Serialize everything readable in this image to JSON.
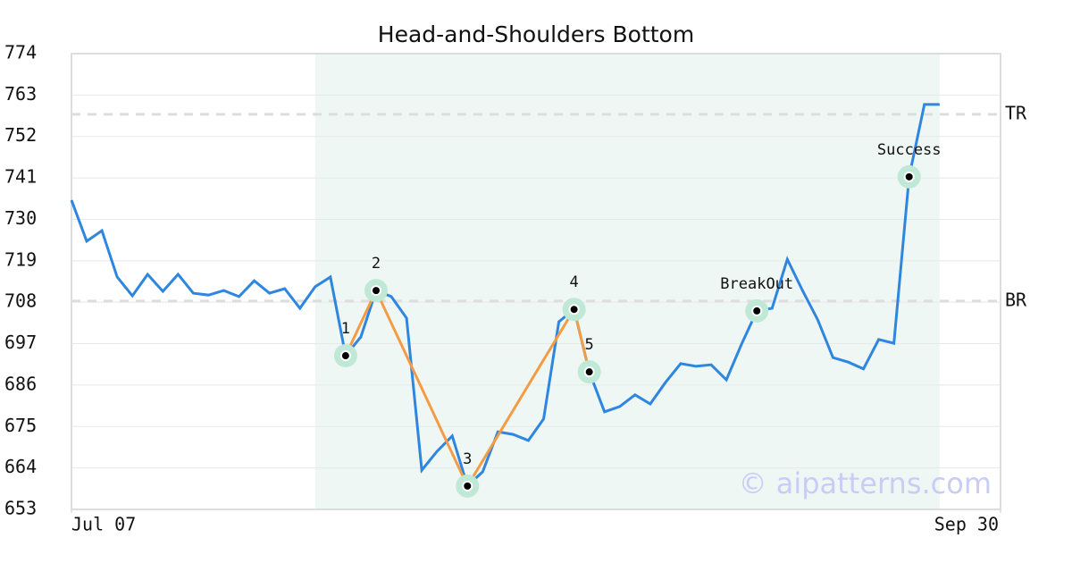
{
  "chart_data": {
    "type": "line",
    "title": "Head-and-Shoulders Bottom",
    "x": [
      0,
      1,
      2,
      3,
      4,
      5,
      6,
      7,
      8,
      9,
      10,
      11,
      12,
      13,
      14,
      15,
      16,
      17,
      18,
      19,
      20,
      21,
      22,
      23,
      24,
      25,
      26,
      27,
      28,
      29,
      30,
      31,
      32,
      33,
      34,
      35,
      36,
      37,
      38,
      39,
      40,
      41,
      42,
      43,
      44,
      45,
      46,
      47,
      48,
      49,
      50,
      51,
      52,
      53,
      54,
      55,
      56,
      57
    ],
    "values": [
      735.1,
      724.2,
      727,
      714.7,
      709.7,
      715.4,
      710.9,
      715.4,
      710.4,
      709.9,
      711.1,
      709.5,
      713.7,
      710.4,
      711.6,
      706.4,
      712.1,
      714.7,
      693.8,
      698.8,
      711.1,
      709.5,
      703.8,
      663.4,
      668.4,
      672.5,
      659.2,
      663,
      673.6,
      672.9,
      671.3,
      677,
      702.8,
      706.1,
      689.5,
      678.9,
      680.3,
      683.4,
      681,
      686.7,
      691.7,
      691,
      691.4,
      687.4,
      696.9,
      705.7,
      706.4,
      719.4,
      711.1,
      703.3,
      693.3,
      692.1,
      690.3,
      698.1,
      697.1,
      741.3,
      760.5,
      760.5
    ],
    "color": "#2e86de",
    "xlim": [
      0,
      61
    ],
    "xticks": [
      {
        "value": 0,
        "label": "Jul 07"
      },
      {
        "value": 61,
        "label": "Sep 30"
      }
    ],
    "ylim": [
      653,
      774
    ],
    "yticks": [
      653,
      664,
      675,
      686,
      697,
      708,
      719,
      730,
      741,
      752,
      763,
      774
    ],
    "grid": true,
    "highlight": {
      "x": [
        16,
        57
      ],
      "color": "#eef7f3"
    },
    "levels": [
      {
        "label": "TR",
        "value": 757.9
      },
      {
        "label": "BR",
        "value": 708.3
      }
    ],
    "pattern": {
      "color": "#f39c45",
      "points": [
        {
          "label": "1",
          "x": 18,
          "y": 693.8
        },
        {
          "label": "2",
          "x": 20,
          "y": 711.1
        },
        {
          "label": "3",
          "x": 26,
          "y": 659.2
        },
        {
          "label": "4",
          "x": 33,
          "y": 706.1
        },
        {
          "label": "5",
          "x": 34,
          "y": 689.5
        }
      ]
    },
    "signals": [
      {
        "label": "BreakOut",
        "x": 45,
        "y": 705.7
      },
      {
        "label": "Success",
        "x": 55,
        "y": 741.3
      }
    ],
    "watermark": "© aipatterns.com"
  }
}
